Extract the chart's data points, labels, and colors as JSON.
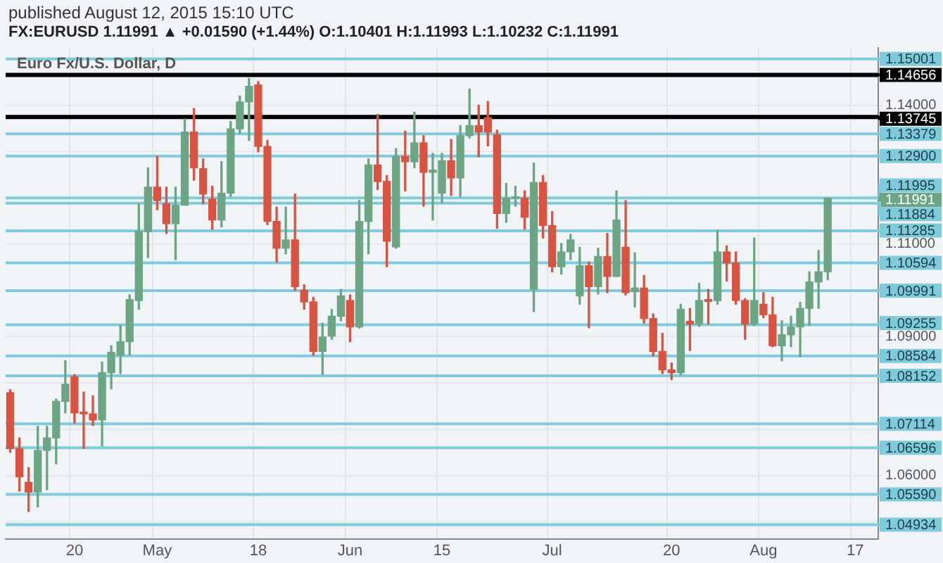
{
  "chart_data": {
    "type": "candlestick",
    "title": "FX:EURUSD 1.11991 ▲ +0.01590 (+1.44%) O:1.10401 H:1.11993 L:1.10232 C:1.11991",
    "subtitle": "published August 12, 2015 15:10 UTC",
    "categories": [
      null,
      null,
      null,
      null,
      null,
      null,
      null,
      "20",
      null,
      null,
      null,
      null,
      null,
      null,
      null,
      null,
      "May",
      null,
      null,
      null,
      null,
      null,
      null,
      null,
      null,
      null,
      null,
      "18",
      null,
      null,
      null,
      null,
      null,
      null,
      null,
      null,
      null,
      "Jun",
      null,
      null,
      null,
      null,
      null,
      null,
      null,
      null,
      null,
      "15",
      null,
      null,
      null,
      null,
      null,
      null,
      null,
      null,
      null,
      null,
      null,
      "Jul",
      null,
      null,
      null,
      null,
      null,
      null,
      null,
      null,
      null,
      null,
      null,
      null,
      "20",
      null,
      null,
      null,
      null,
      null,
      null,
      null,
      null,
      null,
      "Aug",
      null,
      null,
      null,
      null,
      null,
      null,
      null,
      null,
      null,
      "17",
      null,
      null
    ],
    "ohlc": [
      [
        1.0779,
        1.0785,
        1.065,
        1.0658
      ],
      [
        1.0658,
        1.0681,
        1.0566,
        1.0597
      ],
      [
        1.0585,
        1.0617,
        1.0522,
        1.0564
      ],
      [
        1.0564,
        1.0706,
        1.0532,
        1.0654
      ],
      [
        1.0654,
        1.0706,
        1.0569,
        1.0681
      ],
      [
        1.0681,
        1.0765,
        1.0625,
        1.076
      ],
      [
        1.076,
        1.0848,
        1.0735,
        1.0797
      ],
      [
        1.0813,
        1.0818,
        1.0713,
        1.0735
      ],
      [
        1.0737,
        1.078,
        1.0658,
        1.0733
      ],
      [
        1.0733,
        1.0772,
        1.0708,
        1.072
      ],
      [
        1.072,
        1.0845,
        1.0664,
        1.0822
      ],
      [
        1.0822,
        1.088,
        1.0787,
        1.0866
      ],
      [
        1.086,
        1.0924,
        1.082,
        1.0889
      ],
      [
        1.0889,
        1.099,
        1.086,
        1.098
      ],
      [
        1.0978,
        1.1187,
        1.0959,
        1.1127
      ],
      [
        1.1127,
        1.1265,
        1.1071,
        1.1223
      ],
      [
        1.1223,
        1.1289,
        1.1174,
        1.1194
      ],
      [
        1.1187,
        1.1223,
        1.1123,
        1.1144
      ],
      [
        1.1144,
        1.1223,
        1.1066,
        1.1184
      ],
      [
        1.1184,
        1.137,
        1.1184,
        1.1342
      ],
      [
        1.1342,
        1.1393,
        1.1238,
        1.1265
      ],
      [
        1.1263,
        1.1284,
        1.1187,
        1.1208
      ],
      [
        1.1197,
        1.1225,
        1.1132,
        1.1152
      ],
      [
        1.1152,
        1.1278,
        1.1137,
        1.121
      ],
      [
        1.121,
        1.1365,
        1.1203,
        1.1349
      ],
      [
        1.1349,
        1.142,
        1.1339,
        1.1407
      ],
      [
        1.1407,
        1.1458,
        1.1324,
        1.1441
      ],
      [
        1.1444,
        1.1451,
        1.1299,
        1.1311
      ],
      [
        1.1311,
        1.1324,
        1.1142,
        1.1149
      ],
      [
        1.1149,
        1.118,
        1.1061,
        1.1091
      ],
      [
        1.1091,
        1.118,
        1.1079,
        1.1109
      ],
      [
        1.1109,
        1.1208,
        1.1,
        1.1008
      ],
      [
        1.1,
        1.1012,
        1.0959,
        1.0975
      ],
      [
        1.0975,
        1.0985,
        1.086,
        1.0868
      ],
      [
        1.0868,
        1.0929,
        1.0818,
        1.0899
      ],
      [
        1.0901,
        1.0959,
        1.0894,
        1.0944
      ],
      [
        1.0944,
        1.1002,
        1.0934,
        1.0988
      ],
      [
        1.0978,
        1.099,
        1.0889,
        1.0921
      ],
      [
        1.0921,
        1.1194,
        1.0918,
        1.1149
      ],
      [
        1.1149,
        1.1284,
        1.1079,
        1.1271
      ],
      [
        1.1271,
        1.138,
        1.1218,
        1.1235
      ],
      [
        1.1235,
        1.1248,
        1.1051,
        1.1106
      ],
      [
        1.1094,
        1.1306,
        1.1091,
        1.1289
      ],
      [
        1.1289,
        1.1344,
        1.1215,
        1.1278
      ],
      [
        1.1278,
        1.1385,
        1.1265,
        1.1319
      ],
      [
        1.1319,
        1.1334,
        1.1182,
        1.1255
      ],
      [
        1.1255,
        1.1296,
        1.1152,
        1.126
      ],
      [
        1.121,
        1.1296,
        1.1189,
        1.128
      ],
      [
        1.128,
        1.1326,
        1.1205,
        1.1243
      ],
      [
        1.1243,
        1.1356,
        1.1202,
        1.1334
      ],
      [
        1.1334,
        1.1435,
        1.1329,
        1.1356
      ],
      [
        1.1356,
        1.14,
        1.1289,
        1.1342
      ],
      [
        1.1373,
        1.1408,
        1.1312,
        1.1342
      ],
      [
        1.1336,
        1.1346,
        1.1134,
        1.1166
      ],
      [
        1.1166,
        1.1231,
        1.1147,
        1.1199
      ],
      [
        1.1199,
        1.1225,
        1.1182,
        1.1199
      ],
      [
        1.1199,
        1.1215,
        1.1132,
        1.1158
      ],
      [
        1.1002,
        1.1275,
        1.0954,
        1.1233
      ],
      [
        1.1233,
        1.1248,
        1.1113,
        1.114
      ],
      [
        1.114,
        1.117,
        1.104,
        1.1051
      ],
      [
        1.1051,
        1.1101,
        1.1035,
        1.1083
      ],
      [
        1.1083,
        1.1121,
        1.1066,
        1.1109
      ],
      [
        1.0988,
        1.1093,
        1.097,
        1.1053
      ],
      [
        1.1053,
        1.1061,
        1.0919,
        1.1008
      ],
      [
        1.1008,
        1.1091,
        1.0992,
        1.1073
      ],
      [
        1.1073,
        1.1123,
        1.0995,
        1.103
      ],
      [
        1.103,
        1.1215,
        1.103,
        1.1152
      ],
      [
        1.1093,
        1.1194,
        1.099,
        1.0995
      ],
      [
        1.0997,
        1.1081,
        1.0964,
        1.1005
      ],
      [
        1.1005,
        1.1032,
        1.0929,
        1.0939
      ],
      [
        1.0939,
        1.0949,
        1.0858,
        1.0868
      ],
      [
        1.0868,
        1.0907,
        1.082,
        1.0828
      ],
      [
        1.0828,
        1.0843,
        1.0807,
        1.0822
      ],
      [
        1.0822,
        1.097,
        1.0817,
        1.0959
      ],
      [
        1.0933,
        1.0961,
        1.087,
        1.0927
      ],
      [
        1.0927,
        1.1015,
        1.0922,
        1.0978
      ],
      [
        1.098,
        1.1002,
        1.0927,
        1.0976
      ],
      [
        1.0978,
        1.113,
        1.097,
        1.1083
      ],
      [
        1.1083,
        1.1096,
        1.102,
        1.1059
      ],
      [
        1.1059,
        1.1083,
        1.097,
        1.0978
      ],
      [
        1.0978,
        1.0982,
        1.0894,
        1.0927
      ],
      [
        1.0927,
        1.1113,
        1.0924,
        1.0978
      ],
      [
        1.097,
        1.0995,
        1.0941,
        1.0947
      ],
      [
        1.0947,
        1.0985,
        1.0878,
        1.088
      ],
      [
        1.088,
        1.0934,
        1.0848,
        1.0904
      ],
      [
        1.0904,
        1.0944,
        1.0878,
        1.0921
      ],
      [
        1.0921,
        1.0974,
        1.0856,
        1.0961
      ],
      [
        1.0961,
        1.104,
        1.0924,
        1.1018
      ],
      [
        1.1018,
        1.1086,
        1.0961,
        1.104
      ],
      [
        1.10401,
        1.11993,
        1.10232,
        1.11991
      ],
      null,
      null,
      null,
      null,
      null
    ],
    "colors": [
      "#d75442",
      "#d75442",
      "#d75442",
      "#6ba583",
      "#6ba583",
      "#6ba583",
      "#6ba583",
      "#d75442",
      "#d75442",
      "#d75442",
      "#6ba583",
      "#6ba583",
      "#6ba583",
      "#6ba583",
      "#6ba583",
      "#6ba583",
      "#d75442",
      "#d75442",
      "#6ba583",
      "#6ba583",
      "#d75442",
      "#d75442",
      "#d75442",
      "#6ba583",
      "#6ba583",
      "#6ba583",
      "#6ba583",
      "#d75442",
      "#d75442",
      "#d75442",
      "#6ba583",
      "#d75442",
      "#d75442",
      "#d75442",
      "#6ba583",
      "#6ba583",
      "#6ba583",
      "#d75442",
      "#6ba583",
      "#6ba583",
      "#d75442",
      "#d75442",
      "#6ba583",
      "#d75442",
      "#6ba583",
      "#d75442",
      "#6ba583",
      "#6ba583",
      "#d75442",
      "#6ba583",
      "#6ba583",
      "#d75442",
      "#d75442",
      "#d75442",
      "#6ba583",
      "#6ba583",
      "#d75442",
      "#6ba583",
      "#d75442",
      "#d75442",
      "#6ba583",
      "#6ba583",
      "#6ba583",
      "#d75442",
      "#6ba583",
      "#d75442",
      "#6ba583",
      "#d75442",
      "#6ba583",
      "#d75442",
      "#d75442",
      "#d75442",
      "#d75442",
      "#6ba583",
      "#d75442",
      "#6ba583",
      "#d75442",
      "#6ba583",
      "#d75442",
      "#d75442",
      "#d75442",
      "#6ba583",
      "#d75442",
      "#d75442",
      "#6ba583",
      "#6ba583",
      "#6ba583",
      "#6ba583",
      "#6ba583",
      "#6ba583",
      null,
      null,
      null,
      null,
      null
    ],
    "ylim": [
      1.0463,
      1.1524
    ],
    "yticks": [
      {
        "value": 1.05,
        "label": null
      },
      {
        "value": 1.06,
        "label": "1.06000"
      },
      {
        "value": 1.07,
        "label": null
      },
      {
        "value": 1.08,
        "label": null
      },
      {
        "value": 1.09,
        "label": "1.09000"
      },
      {
        "value": 1.1,
        "label": null
      },
      {
        "value": 1.11,
        "label": "1.11000"
      },
      {
        "value": 1.12,
        "label": null
      },
      {
        "value": 1.13,
        "label": null
      },
      {
        "value": 1.14,
        "label": "1.14000"
      },
      {
        "value": 1.15,
        "label": null
      }
    ],
    "ref_lines": [
      {
        "axis": "y",
        "value": 1.15001,
        "label": "1.15001",
        "color": "#7fcbdc"
      },
      {
        "axis": "y",
        "value": 1.14656,
        "label": "1.14656",
        "color": "#000000"
      },
      {
        "axis": "y",
        "value": 1.13745,
        "label": "1.13745",
        "color": "#000000"
      },
      {
        "axis": "y",
        "value": 1.13379,
        "label": "1.13379",
        "color": "#7fcbdc"
      },
      {
        "axis": "y",
        "value": 1.129,
        "label": "1.12900",
        "color": "#7fcbdc"
      },
      {
        "axis": "y",
        "value": 1.11995,
        "label": "1.11995",
        "color": "#7fcbdc"
      },
      {
        "axis": "y",
        "value": 1.11884,
        "label": "1.11884",
        "color": "#7fcbdc"
      },
      {
        "axis": "y",
        "value": 1.11285,
        "label": "1.11285",
        "color": "#7fcbdc"
      },
      {
        "axis": "y",
        "value": 1.10594,
        "label": "1.10594",
        "color": "#7fcbdc"
      },
      {
        "axis": "y",
        "value": 1.09991,
        "label": "1.09991",
        "color": "#7fcbdc"
      },
      {
        "axis": "y",
        "value": 1.09255,
        "label": "1.09255",
        "color": "#7fcbdc"
      },
      {
        "axis": "y",
        "value": 1.08584,
        "label": "1.08584",
        "color": "#7fcbdc"
      },
      {
        "axis": "y",
        "value": 1.08152,
        "label": "1.08152",
        "color": "#7fcbdc"
      },
      {
        "axis": "y",
        "value": 1.07114,
        "label": "1.07114",
        "color": "#7fcbdc"
      },
      {
        "axis": "y",
        "value": 1.06596,
        "label": "1.06596",
        "color": "#7fcbdc"
      },
      {
        "axis": "y",
        "value": 1.0559,
        "label": "1.05590",
        "color": "#7fcbdc"
      },
      {
        "axis": "y",
        "value": 1.04934,
        "label": "1.04934",
        "color": "#7fcbdc"
      }
    ],
    "annotations": [
      "Euro Fx/U.S. Dollar, D",
      "1.11991"
    ],
    "grid": true,
    "legend": false
  }
}
